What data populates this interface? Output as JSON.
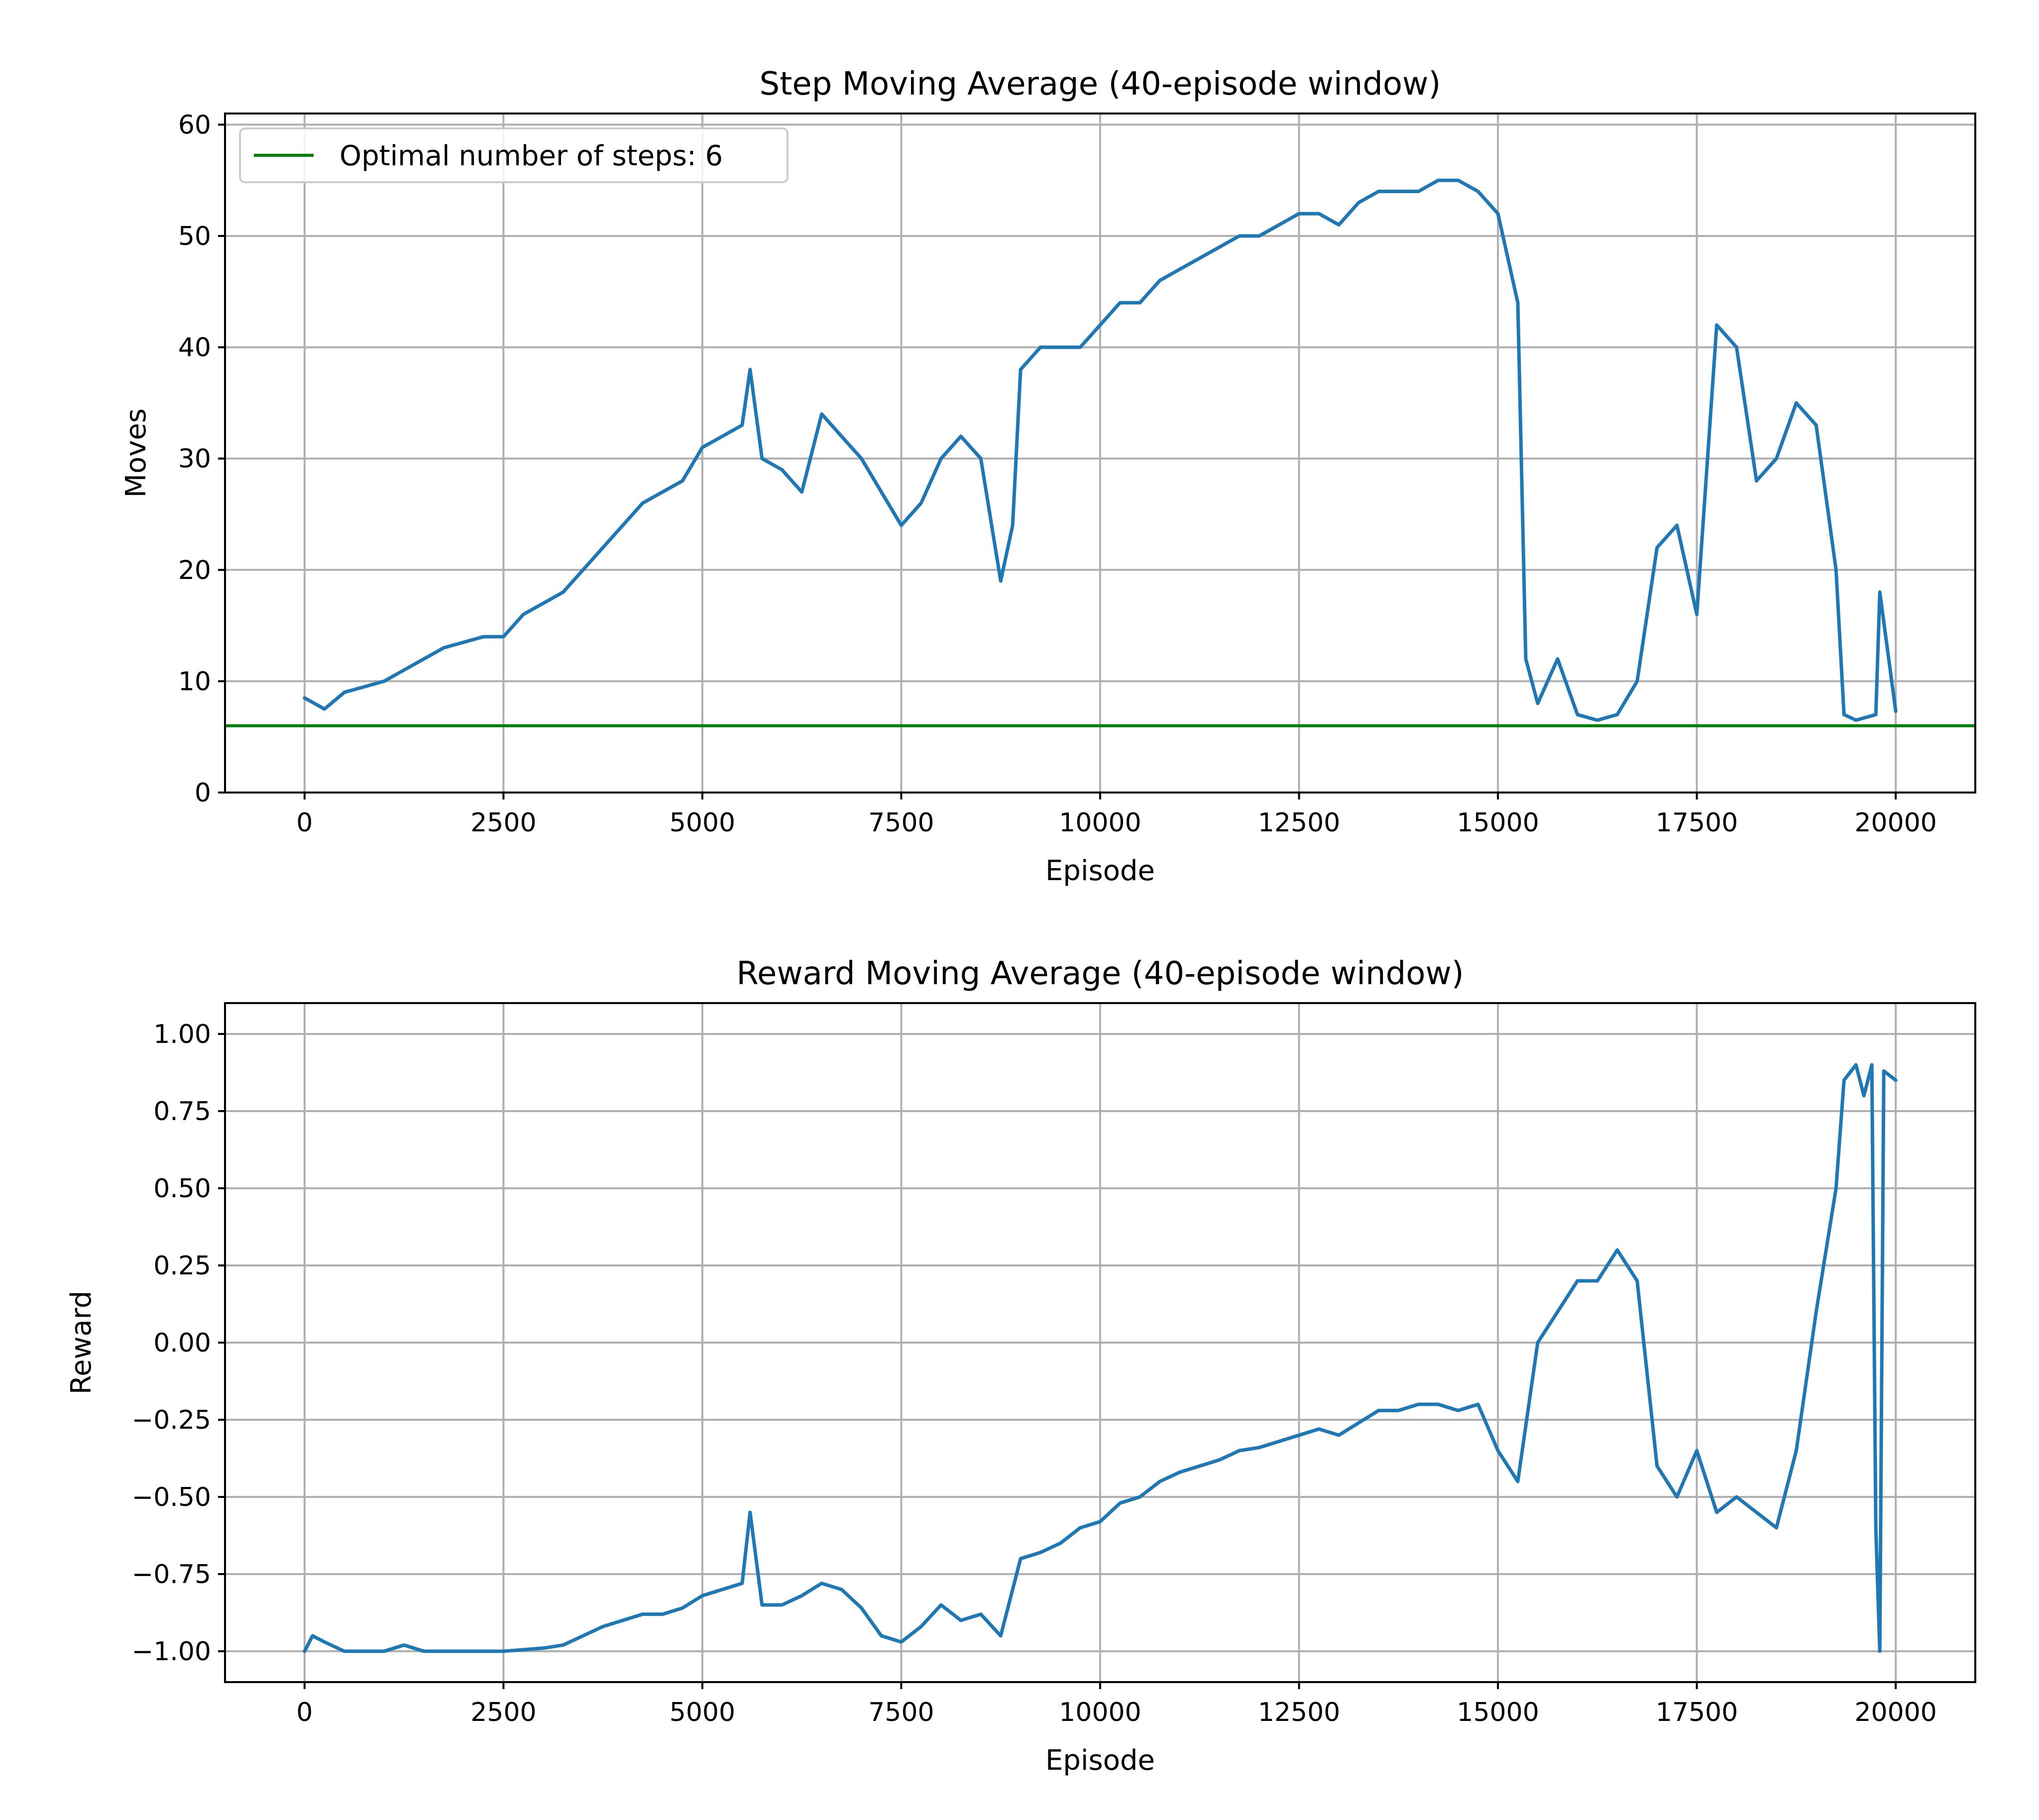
{
  "chart_data": [
    {
      "type": "line",
      "title": "Step Moving Average (40-episode window)",
      "xlabel": "Episode",
      "ylabel": "Moves",
      "xlim": [
        -1000,
        21000
      ],
      "ylim": [
        0,
        61
      ],
      "xticks": [
        0,
        2500,
        5000,
        7500,
        10000,
        12500,
        15000,
        17500,
        20000
      ],
      "xtick_labels": [
        "0",
        "2500",
        "5000",
        "7500",
        "10000",
        "12500",
        "15000",
        "17500",
        "20000"
      ],
      "yticks": [
        0,
        10,
        20,
        30,
        40,
        50,
        60
      ],
      "ytick_labels": [
        "0",
        "10",
        "20",
        "30",
        "40",
        "50",
        "60"
      ],
      "grid": true,
      "legend": {
        "position": "top-left",
        "entries": [
          "Optimal number of steps: 6"
        ]
      },
      "hline": {
        "y": 6,
        "label": "Optimal number of steps: 6",
        "color": "#008000"
      },
      "series": [
        {
          "color": "#1f77b4",
          "points": [
            [
              0,
              8.5
            ],
            [
              250,
              7.5
            ],
            [
              500,
              9
            ],
            [
              750,
              9.5
            ],
            [
              1000,
              10
            ],
            [
              1250,
              11
            ],
            [
              1500,
              12
            ],
            [
              1750,
              13
            ],
            [
              2000,
              13.5
            ],
            [
              2250,
              14
            ],
            [
              2500,
              14
            ],
            [
              2750,
              16
            ],
            [
              3000,
              17
            ],
            [
              3250,
              18
            ],
            [
              3500,
              20
            ],
            [
              3750,
              22
            ],
            [
              4000,
              24
            ],
            [
              4250,
              26
            ],
            [
              4500,
              27
            ],
            [
              4750,
              28
            ],
            [
              5000,
              31
            ],
            [
              5250,
              32
            ],
            [
              5500,
              33
            ],
            [
              5600,
              38
            ],
            [
              5750,
              30
            ],
            [
              6000,
              29
            ],
            [
              6250,
              27
            ],
            [
              6500,
              34
            ],
            [
              6750,
              32
            ],
            [
              7000,
              30
            ],
            [
              7250,
              27
            ],
            [
              7500,
              24
            ],
            [
              7750,
              26
            ],
            [
              8000,
              30
            ],
            [
              8250,
              32
            ],
            [
              8500,
              30
            ],
            [
              8750,
              19
            ],
            [
              8900,
              24
            ],
            [
              9000,
              38
            ],
            [
              9250,
              40
            ],
            [
              9500,
              40
            ],
            [
              9750,
              40
            ],
            [
              10000,
              42
            ],
            [
              10250,
              44
            ],
            [
              10500,
              44
            ],
            [
              10750,
              46
            ],
            [
              11000,
              47
            ],
            [
              11250,
              48
            ],
            [
              11500,
              49
            ],
            [
              11750,
              50
            ],
            [
              12000,
              50
            ],
            [
              12250,
              51
            ],
            [
              12500,
              52
            ],
            [
              12750,
              52
            ],
            [
              13000,
              51
            ],
            [
              13250,
              53
            ],
            [
              13500,
              54
            ],
            [
              13750,
              54
            ],
            [
              14000,
              54
            ],
            [
              14250,
              55
            ],
            [
              14500,
              55
            ],
            [
              14750,
              54
            ],
            [
              15000,
              52
            ],
            [
              15250,
              44
            ],
            [
              15350,
              12
            ],
            [
              15500,
              8
            ],
            [
              15750,
              12
            ],
            [
              16000,
              7
            ],
            [
              16250,
              6.5
            ],
            [
              16500,
              7
            ],
            [
              16750,
              10
            ],
            [
              17000,
              22
            ],
            [
              17250,
              24
            ],
            [
              17500,
              16
            ],
            [
              17750,
              42
            ],
            [
              18000,
              40
            ],
            [
              18250,
              28
            ],
            [
              18500,
              30
            ],
            [
              18750,
              35
            ],
            [
              19000,
              33
            ],
            [
              19250,
              20
            ],
            [
              19350,
              7
            ],
            [
              19500,
              6.5
            ],
            [
              19750,
              7
            ],
            [
              19800,
              18
            ],
            [
              20000,
              7.3
            ]
          ]
        }
      ]
    },
    {
      "type": "line",
      "title": "Reward Moving Average (40-episode window)",
      "xlabel": "Episode",
      "ylabel": "Reward",
      "xlim": [
        -1000,
        21000
      ],
      "ylim": [
        -1.1,
        1.1
      ],
      "xticks": [
        0,
        2500,
        5000,
        7500,
        10000,
        12500,
        15000,
        17500,
        20000
      ],
      "xtick_labels": [
        "0",
        "2500",
        "5000",
        "7500",
        "10000",
        "12500",
        "15000",
        "17500",
        "20000"
      ],
      "yticks": [
        -1.0,
        -0.75,
        -0.5,
        -0.25,
        0.0,
        0.25,
        0.5,
        0.75,
        1.0
      ],
      "ytick_labels": [
        "−1.00",
        "−0.75",
        "−0.50",
        "−0.25",
        "0.00",
        "0.25",
        "0.50",
        "0.75",
        "1.00"
      ],
      "grid": true,
      "series": [
        {
          "color": "#1f77b4",
          "points": [
            [
              0,
              -1.0
            ],
            [
              100,
              -0.95
            ],
            [
              250,
              -0.97
            ],
            [
              500,
              -1.0
            ],
            [
              750,
              -1.0
            ],
            [
              1000,
              -1.0
            ],
            [
              1250,
              -0.98
            ],
            [
              1500,
              -1.0
            ],
            [
              2000,
              -1.0
            ],
            [
              2500,
              -1.0
            ],
            [
              3000,
              -0.99
            ],
            [
              3250,
              -0.98
            ],
            [
              3500,
              -0.95
            ],
            [
              3750,
              -0.92
            ],
            [
              4000,
              -0.9
            ],
            [
              4250,
              -0.88
            ],
            [
              4500,
              -0.88
            ],
            [
              4750,
              -0.86
            ],
            [
              5000,
              -0.82
            ],
            [
              5250,
              -0.8
            ],
            [
              5500,
              -0.78
            ],
            [
              5600,
              -0.55
            ],
            [
              5750,
              -0.85
            ],
            [
              6000,
              -0.85
            ],
            [
              6250,
              -0.82
            ],
            [
              6500,
              -0.78
            ],
            [
              6750,
              -0.8
            ],
            [
              7000,
              -0.86
            ],
            [
              7250,
              -0.95
            ],
            [
              7500,
              -0.97
            ],
            [
              7750,
              -0.92
            ],
            [
              8000,
              -0.85
            ],
            [
              8250,
              -0.9
            ],
            [
              8500,
              -0.88
            ],
            [
              8750,
              -0.95
            ],
            [
              9000,
              -0.7
            ],
            [
              9250,
              -0.68
            ],
            [
              9500,
              -0.65
            ],
            [
              9750,
              -0.6
            ],
            [
              10000,
              -0.58
            ],
            [
              10250,
              -0.52
            ],
            [
              10500,
              -0.5
            ],
            [
              10750,
              -0.45
            ],
            [
              11000,
              -0.42
            ],
            [
              11250,
              -0.4
            ],
            [
              11500,
              -0.38
            ],
            [
              11750,
              -0.35
            ],
            [
              12000,
              -0.34
            ],
            [
              12250,
              -0.32
            ],
            [
              12500,
              -0.3
            ],
            [
              12750,
              -0.28
            ],
            [
              13000,
              -0.3
            ],
            [
              13250,
              -0.26
            ],
            [
              13500,
              -0.22
            ],
            [
              13750,
              -0.22
            ],
            [
              14000,
              -0.2
            ],
            [
              14250,
              -0.2
            ],
            [
              14500,
              -0.22
            ],
            [
              14750,
              -0.2
            ],
            [
              15000,
              -0.35
            ],
            [
              15250,
              -0.45
            ],
            [
              15500,
              0.0
            ],
            [
              15750,
              0.1
            ],
            [
              16000,
              0.2
            ],
            [
              16250,
              0.2
            ],
            [
              16500,
              0.3
            ],
            [
              16750,
              0.2
            ],
            [
              17000,
              -0.4
            ],
            [
              17250,
              -0.5
            ],
            [
              17500,
              -0.35
            ],
            [
              17750,
              -0.55
            ],
            [
              18000,
              -0.5
            ],
            [
              18250,
              -0.55
            ],
            [
              18500,
              -0.6
            ],
            [
              18750,
              -0.35
            ],
            [
              19000,
              0.1
            ],
            [
              19250,
              0.5
            ],
            [
              19350,
              0.85
            ],
            [
              19500,
              0.9
            ],
            [
              19600,
              0.8
            ],
            [
              19700,
              0.9
            ],
            [
              19750,
              -0.6
            ],
            [
              19800,
              -1.0
            ],
            [
              19850,
              0.88
            ],
            [
              20000,
              0.85
            ]
          ]
        }
      ]
    }
  ]
}
